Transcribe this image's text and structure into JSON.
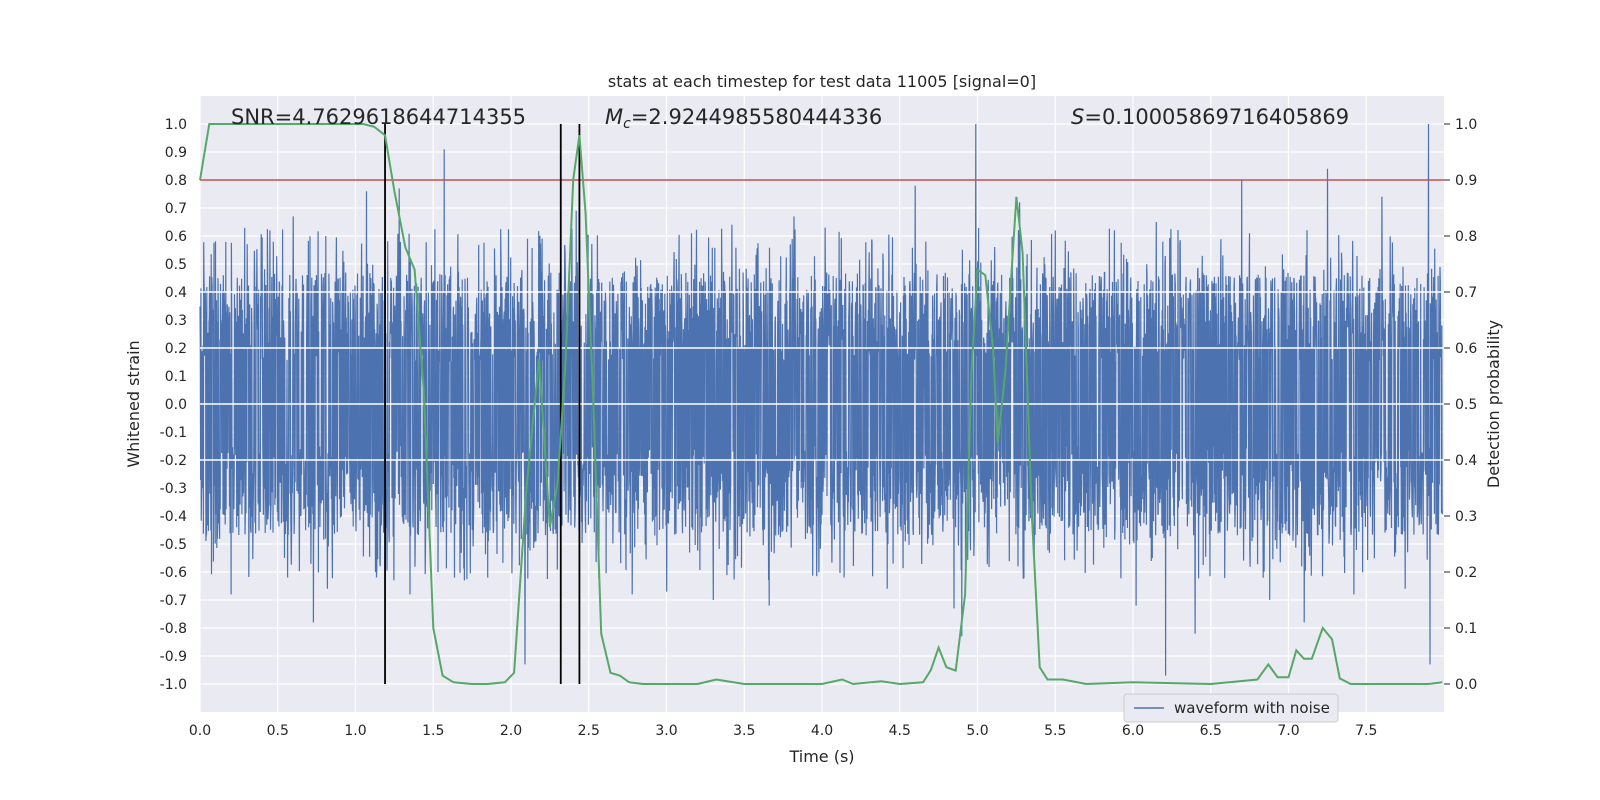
{
  "chart_data": {
    "type": "line",
    "title": "stats at each timestep for test data 11005 [signal=0]",
    "xlabel": "Time (s)",
    "ylabel": "Whitened strain",
    "y2label": "Detection probability",
    "xlim": [
      0.0,
      8.0
    ],
    "ylim": [
      -1.1,
      1.1
    ],
    "y2lim": [
      -0.05,
      1.05
    ],
    "xticks": [
      0.0,
      0.5,
      1.0,
      1.5,
      2.0,
      2.5,
      3.0,
      3.5,
      4.0,
      4.5,
      5.0,
      5.5,
      6.0,
      6.5,
      7.0,
      7.5
    ],
    "xtick_labels": [
      "0.0",
      "0.5",
      "1.0",
      "1.5",
      "2.0",
      "2.5",
      "3.0",
      "3.5",
      "4.0",
      "4.5",
      "5.0",
      "5.5",
      "6.0",
      "6.5",
      "7.0",
      "7.5"
    ],
    "yticks": [
      1.0,
      0.9,
      0.8,
      0.7,
      0.6,
      0.5,
      0.4,
      0.3,
      0.2,
      0.1,
      0.0,
      -0.1,
      -0.2,
      -0.3,
      -0.4,
      -0.5,
      -0.6,
      -0.7,
      -0.8,
      -0.9,
      -1.0
    ],
    "ytick_labels": [
      "1.0",
      "0.9",
      "0.8",
      "0.7",
      "0.6",
      "0.5",
      "0.4",
      "0.3",
      "0.2",
      "0.1",
      "0.0",
      "-0.1",
      "-0.2",
      "-0.3",
      "-0.4",
      "-0.5",
      "-0.6",
      "-0.7",
      "-0.8",
      "-0.9",
      "-1.0"
    ],
    "y2ticks": [
      1.0,
      0.9,
      0.8,
      0.7,
      0.6,
      0.5,
      0.4,
      0.3,
      0.2,
      0.1,
      0.0
    ],
    "y2tick_labels": [
      "1.0",
      "0.9",
      "0.8",
      "0.7",
      "0.6",
      "0.5",
      "0.4",
      "0.3",
      "0.2",
      "0.1",
      "0.0"
    ],
    "grid": true,
    "legend": {
      "position": "lower-right",
      "entries": [
        "waveform with noise"
      ]
    },
    "annotations": {
      "snr_text": "SNR=4.7629618644714355",
      "mc_symbol": "M",
      "mc_sub": "c",
      "mc_value": "=2.9244985580444336",
      "s_symbol": "S",
      "s_value": "=0.10005869716405869"
    },
    "threshold": {
      "value": 0.9,
      "axis": "y2",
      "color": "#c44e52"
    },
    "vertical_lines": [
      1.19,
      2.32,
      2.44
    ],
    "noise_series": {
      "name": "waveform with noise",
      "color": "#4c72b0",
      "x_range": [
        0.0,
        7.99
      ],
      "sample_count": 4000,
      "envelope_typical": [
        -0.42,
        0.43
      ],
      "spikes": [
        {
          "x": 0.15,
          "y": 0.46
        },
        {
          "x": 0.2,
          "y": -0.68
        },
        {
          "x": 0.45,
          "y": 0.62
        },
        {
          "x": 0.6,
          "y": 0.67
        },
        {
          "x": 0.73,
          "y": -0.78
        },
        {
          "x": 0.82,
          "y": -0.66
        },
        {
          "x": 1.07,
          "y": 0.76
        },
        {
          "x": 1.28,
          "y": 0.77
        },
        {
          "x": 1.35,
          "y": -0.68
        },
        {
          "x": 1.57,
          "y": 0.91
        },
        {
          "x": 1.7,
          "y": -0.63
        },
        {
          "x": 1.85,
          "y": -0.62
        },
        {
          "x": 2.09,
          "y": -0.93
        },
        {
          "x": 2.42,
          "y": 0.69
        },
        {
          "x": 2.78,
          "y": -0.68
        },
        {
          "x": 3.0,
          "y": -0.67
        },
        {
          "x": 3.16,
          "y": 0.61
        },
        {
          "x": 3.3,
          "y": -0.7
        },
        {
          "x": 3.42,
          "y": 0.64
        },
        {
          "x": 3.66,
          "y": -0.72
        },
        {
          "x": 3.82,
          "y": 0.67
        },
        {
          "x": 4.02,
          "y": 0.63
        },
        {
          "x": 4.42,
          "y": -0.66
        },
        {
          "x": 4.6,
          "y": 0.78
        },
        {
          "x": 4.85,
          "y": -0.73
        },
        {
          "x": 4.9,
          "y": -0.83
        },
        {
          "x": 4.99,
          "y": 1.0
        },
        {
          "x": 5.27,
          "y": 0.72
        },
        {
          "x": 5.5,
          "y": 0.62
        },
        {
          "x": 5.88,
          "y": 0.62
        },
        {
          "x": 6.02,
          "y": -0.72
        },
        {
          "x": 6.15,
          "y": 0.65
        },
        {
          "x": 6.21,
          "y": -0.97
        },
        {
          "x": 6.4,
          "y": -0.82
        },
        {
          "x": 6.7,
          "y": 0.8
        },
        {
          "x": 6.88,
          "y": -0.7
        },
        {
          "x": 7.1,
          "y": -0.78
        },
        {
          "x": 7.25,
          "y": 0.84
        },
        {
          "x": 7.42,
          "y": -0.68
        },
        {
          "x": 7.6,
          "y": 0.74
        },
        {
          "x": 7.75,
          "y": -0.66
        },
        {
          "x": 7.9,
          "y": 1.0
        },
        {
          "x": 7.91,
          "y": -0.93
        }
      ]
    },
    "probability_series": {
      "name": "detection probability",
      "color": "#55a868",
      "points": [
        [
          0.0,
          0.9
        ],
        [
          0.06,
          1.0
        ],
        [
          0.12,
          1.0
        ],
        [
          0.3,
          1.0
        ],
        [
          0.5,
          1.0
        ],
        [
          0.7,
          1.0
        ],
        [
          0.9,
          1.0
        ],
        [
          1.05,
          1.0
        ],
        [
          1.12,
          0.995
        ],
        [
          1.19,
          0.98
        ],
        [
          1.25,
          0.88
        ],
        [
          1.32,
          0.78
        ],
        [
          1.38,
          0.74
        ],
        [
          1.44,
          0.52
        ],
        [
          1.5,
          0.1
        ],
        [
          1.56,
          0.015
        ],
        [
          1.63,
          0.003
        ],
        [
          1.75,
          0.0
        ],
        [
          1.85,
          0.0
        ],
        [
          1.96,
          0.003
        ],
        [
          2.02,
          0.02
        ],
        [
          2.1,
          0.35
        ],
        [
          2.18,
          0.58
        ],
        [
          2.25,
          0.28
        ],
        [
          2.3,
          0.36
        ],
        [
          2.35,
          0.57
        ],
        [
          2.4,
          0.9
        ],
        [
          2.44,
          0.98
        ],
        [
          2.48,
          0.84
        ],
        [
          2.53,
          0.5
        ],
        [
          2.58,
          0.09
        ],
        [
          2.64,
          0.02
        ],
        [
          2.7,
          0.015
        ],
        [
          2.76,
          0.003
        ],
        [
          2.85,
          0.0
        ],
        [
          3.2,
          0.0
        ],
        [
          3.32,
          0.008
        ],
        [
          3.5,
          0.0
        ],
        [
          4.0,
          0.0
        ],
        [
          4.13,
          0.008
        ],
        [
          4.2,
          0.0
        ],
        [
          4.38,
          0.005
        ],
        [
          4.5,
          0.0
        ],
        [
          4.65,
          0.003
        ],
        [
          4.7,
          0.025
        ],
        [
          4.75,
          0.065
        ],
        [
          4.8,
          0.03
        ],
        [
          4.86,
          0.024
        ],
        [
          4.92,
          0.16
        ],
        [
          4.96,
          0.55
        ],
        [
          5.0,
          0.74
        ],
        [
          5.05,
          0.73
        ],
        [
          5.1,
          0.6
        ],
        [
          5.13,
          0.43
        ],
        [
          5.18,
          0.56
        ],
        [
          5.22,
          0.74
        ],
        [
          5.25,
          0.87
        ],
        [
          5.29,
          0.77
        ],
        [
          5.35,
          0.3
        ],
        [
          5.4,
          0.03
        ],
        [
          5.45,
          0.008
        ],
        [
          5.55,
          0.008
        ],
        [
          5.7,
          0.0
        ],
        [
          6.0,
          0.003
        ],
        [
          6.5,
          0.0
        ],
        [
          6.8,
          0.008
        ],
        [
          6.87,
          0.035
        ],
        [
          6.93,
          0.012
        ],
        [
          7.0,
          0.012
        ],
        [
          7.05,
          0.06
        ],
        [
          7.1,
          0.045
        ],
        [
          7.15,
          0.045
        ],
        [
          7.22,
          0.1
        ],
        [
          7.28,
          0.08
        ],
        [
          7.33,
          0.01
        ],
        [
          7.4,
          0.0
        ],
        [
          7.9,
          0.0
        ],
        [
          7.99,
          0.003
        ]
      ]
    }
  }
}
